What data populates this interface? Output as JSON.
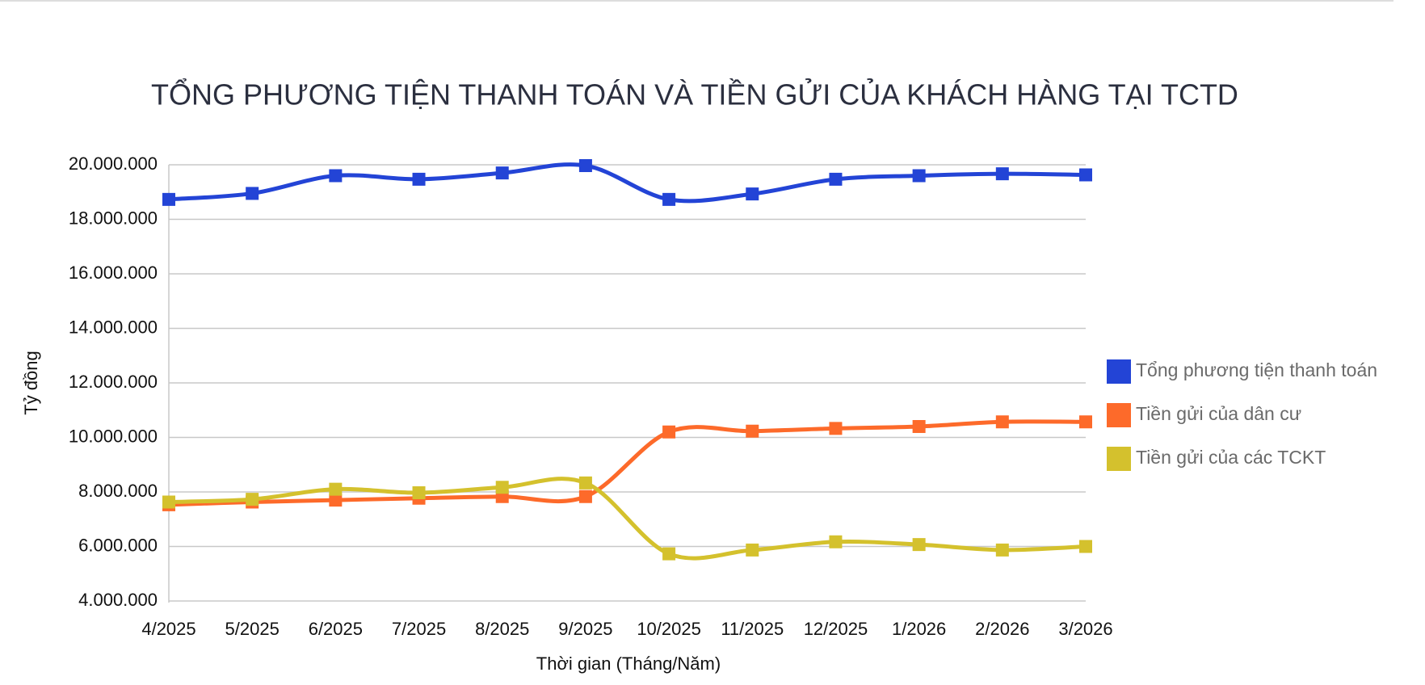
{
  "chart_data": {
    "type": "line",
    "title": "TỔNG PHƯƠNG TIỆN THANH TOÁN VÀ TIỀN GỬI CỦA KHÁCH HÀNG TẠI TCTD",
    "x_label": "Thời gian (Tháng/Năm)",
    "y_label": "Tỷ đồng",
    "categories": [
      "4/2025",
      "5/2025",
      "6/2025",
      "7/2025",
      "8/2025",
      "9/2025",
      "10/2025",
      "11/2025",
      "12/2025",
      "1/2026",
      "2/2026",
      "3/2026"
    ],
    "series": [
      {
        "name": "Tổng phương tiện thanh toán",
        "color": "#2344d6",
        "values": [
          18730000,
          18950000,
          19600000,
          19470000,
          19700000,
          19970000,
          18730000,
          18930000,
          19470000,
          19600000,
          19670000,
          19630000
        ]
      },
      {
        "name": "Tiền gửi của dân cư",
        "color": "#fd6a2a",
        "values": [
          7530000,
          7630000,
          7700000,
          7770000,
          7830000,
          7830000,
          10200000,
          10230000,
          10330000,
          10400000,
          10570000,
          10570000
        ]
      },
      {
        "name": "Tiền gửi của các TCKT",
        "color": "#d4c12d",
        "values": [
          7630000,
          7730000,
          8100000,
          7970000,
          8170000,
          8330000,
          5730000,
          5870000,
          6170000,
          6070000,
          5870000,
          6000000
        ]
      }
    ],
    "ylim": [
      4000000,
      20000000
    ],
    "yticks": [
      {
        "value": 4000000,
        "label": "4.000.000"
      },
      {
        "value": 6000000,
        "label": "6.000.000"
      },
      {
        "value": 8000000,
        "label": "8.000.000"
      },
      {
        "value": 10000000,
        "label": "10.000.000"
      },
      {
        "value": 12000000,
        "label": "12.000.000"
      },
      {
        "value": 14000000,
        "label": "14.000.000"
      },
      {
        "value": 16000000,
        "label": "16.000.000"
      },
      {
        "value": 18000000,
        "label": "18.000.000"
      },
      {
        "value": 20000000,
        "label": "20.000.000"
      }
    ],
    "grid": true,
    "smooth": true,
    "legend": "right"
  }
}
